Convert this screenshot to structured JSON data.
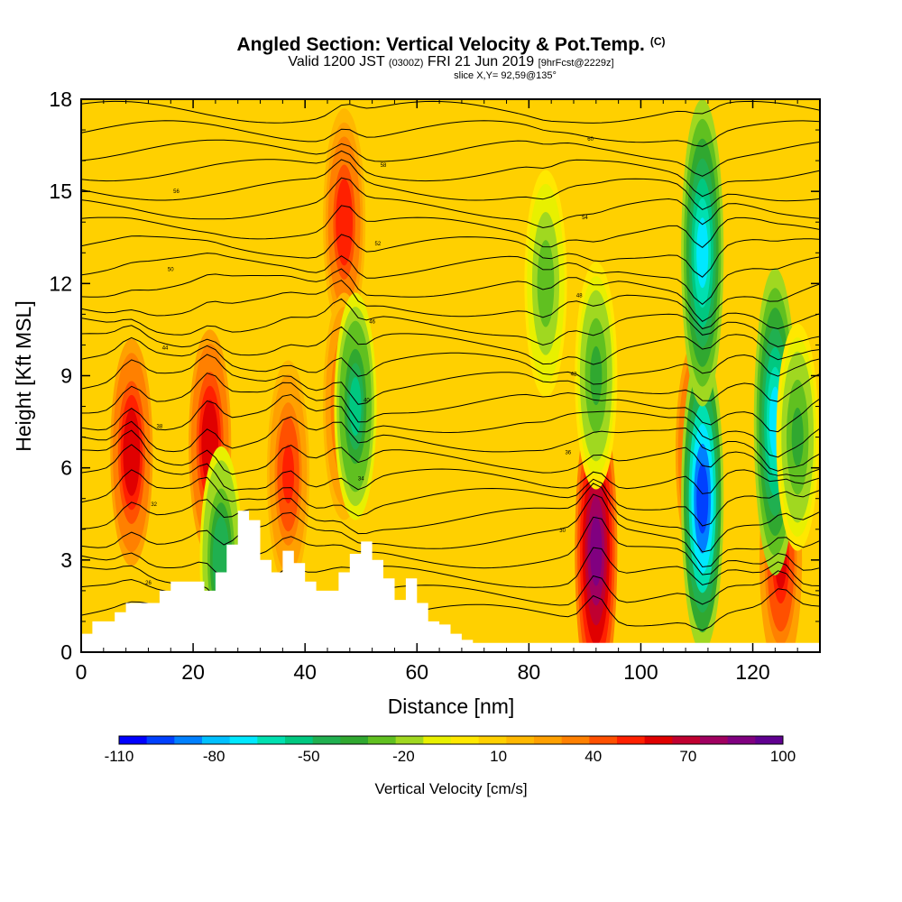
{
  "header": {
    "title": "Angled Section: Vertical Velocity & Pot.Temp.",
    "title_mark": "(C)",
    "valid_prefix": "Valid 1200 JST",
    "valid_zulu": "(0300Z)",
    "valid_date": "FRI 21 Jun 2019",
    "forecast": "[9hrFcst@2229z]",
    "slice": "slice X,Y= 92,59@135°"
  },
  "chart_data": {
    "type": "heatmap",
    "title": "Angled Section: Vertical Velocity & Pot.Temp.",
    "xlabel": "Distance [nm]",
    "ylabel": "Height [Kft MSL]",
    "xlim": [
      0,
      132
    ],
    "ylim": [
      0,
      18
    ],
    "xticks": [
      0,
      20,
      40,
      60,
      80,
      100,
      120
    ],
    "yticks": [
      0,
      3,
      6,
      9,
      12,
      15,
      18
    ],
    "grid": false,
    "colorbar": {
      "label": "Vertical Velocity [cm/s]",
      "tick_labels": [
        "-110",
        "-80",
        "-50",
        "-20",
        "10",
        "40",
        "70",
        "100"
      ],
      "min": -110,
      "max": 100,
      "colors": [
        "#0000ff",
        "#0040ff",
        "#0080ff",
        "#00c0ff",
        "#00e8ff",
        "#00e0b0",
        "#00c880",
        "#20b050",
        "#30a830",
        "#60c020",
        "#a0d820",
        "#e8f000",
        "#ffe800",
        "#ffd000",
        "#ffb800",
        "#ffa000",
        "#ff8000",
        "#ff5000",
        "#ff2000",
        "#e00000",
        "#c00030",
        "#a00060",
        "#800080",
        "#600090"
      ]
    },
    "updrafts": [
      {
        "x": 9,
        "z": 6.5,
        "w": 70
      },
      {
        "x": 23,
        "z": 6.8,
        "w": 70
      },
      {
        "x": 37,
        "z": 5.8,
        "w": 55
      },
      {
        "x": 47,
        "z": 14,
        "w": 60
      },
      {
        "x": 47,
        "z": 8,
        "w": 50
      },
      {
        "x": 92,
        "z": 3.3,
        "w": 100
      },
      {
        "x": 110,
        "z": 6.5,
        "w": 70
      },
      {
        "x": 125,
        "z": 3,
        "w": 65
      }
    ],
    "downdrafts": [
      {
        "x": 25,
        "z": 3,
        "w": -55
      },
      {
        "x": 49,
        "z": 8,
        "w": -60
      },
      {
        "x": 83,
        "z": 12,
        "w": -35
      },
      {
        "x": 92,
        "z": 9,
        "w": -40
      },
      {
        "x": 111,
        "z": 5,
        "w": -110
      },
      {
        "x": 111,
        "z": 13,
        "w": -80
      },
      {
        "x": 124,
        "z": 7.5,
        "w": -80
      },
      {
        "x": 128,
        "z": 7,
        "w": -40
      }
    ],
    "terrain": {
      "x": [
        0,
        2,
        4,
        6,
        8,
        10,
        12,
        14,
        16,
        18,
        20,
        22,
        24,
        26,
        28,
        30,
        32,
        34,
        36,
        38,
        40,
        42,
        44,
        46,
        48,
        50,
        52,
        54,
        56,
        58,
        60,
        62,
        64,
        66,
        68,
        70,
        72,
        132
      ],
      "z": [
        0.6,
        1,
        1,
        1.3,
        1.6,
        1.6,
        1.6,
        2,
        2.3,
        2.3,
        2.3,
        2,
        2.6,
        3.5,
        4.6,
        4.3,
        3,
        2.6,
        3.3,
        2.9,
        2.3,
        2,
        2,
        2.6,
        3.2,
        3.6,
        3,
        2.4,
        1.7,
        2.4,
        1.6,
        1,
        0.9,
        0.6,
        0.4,
        0.3,
        0.3,
        0.3
      ]
    },
    "isentrope_labels": [
      "26",
      "28",
      "30",
      "32",
      "34",
      "36",
      "38",
      "40",
      "42",
      "44",
      "46",
      "48",
      "50",
      "52",
      "54",
      "56",
      "58",
      "60"
    ]
  }
}
